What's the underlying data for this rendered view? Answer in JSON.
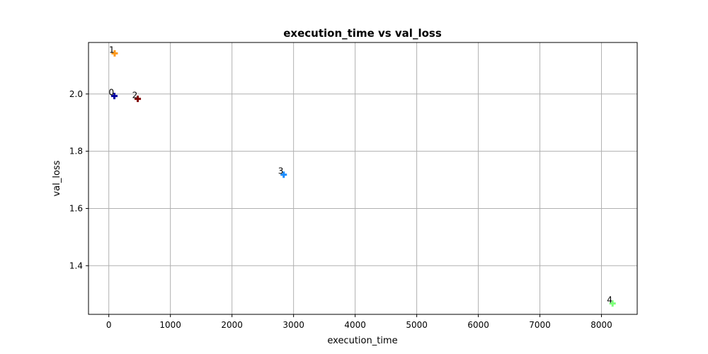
{
  "chart_data": {
    "type": "scatter",
    "title": "execution_time vs val_loss",
    "xlabel": "execution_time",
    "ylabel": "val_loss",
    "xlim": [
      -330,
      8580
    ],
    "ylim": [
      1.23,
      2.18
    ],
    "xticks": [
      0,
      1000,
      2000,
      3000,
      4000,
      5000,
      6000,
      7000,
      8000
    ],
    "yticks": [
      1.4,
      1.6,
      1.8,
      2.0
    ],
    "xtick_labels": [
      "0",
      "1000",
      "2000",
      "3000",
      "4000",
      "5000",
      "6000",
      "7000",
      "8000"
    ],
    "ytick_labels": [
      "1.4",
      "1.6",
      "1.8",
      "2.0"
    ],
    "grid": true,
    "marker": "plus",
    "points": [
      {
        "label": "0",
        "x": 90,
        "y": 1.993,
        "color": "#0000a0"
      },
      {
        "label": "1",
        "x": 95,
        "y": 2.142,
        "color": "#ff9a1a"
      },
      {
        "label": "2",
        "x": 470,
        "y": 1.983,
        "color": "#800000"
      },
      {
        "label": "3",
        "x": 2840,
        "y": 1.718,
        "color": "#1a8cff"
      },
      {
        "label": "4",
        "x": 8180,
        "y": 1.268,
        "color": "#7dff7a"
      }
    ]
  }
}
